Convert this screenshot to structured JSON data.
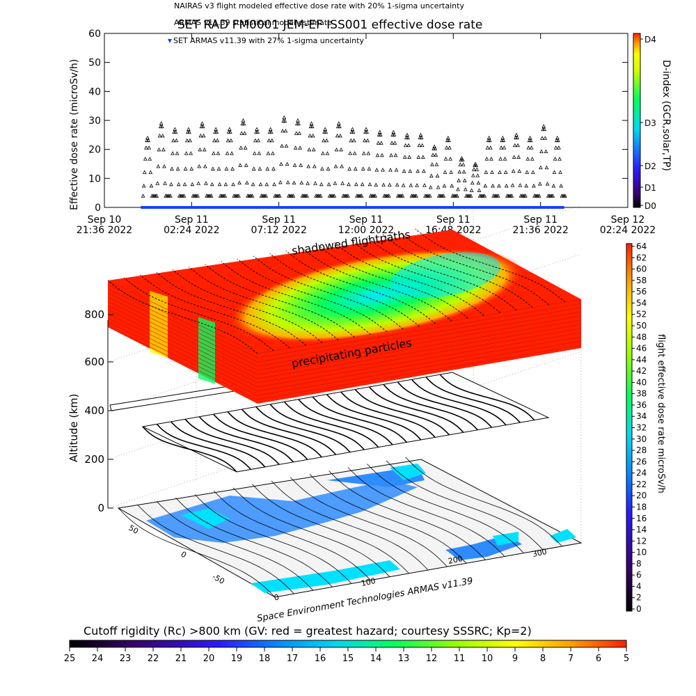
{
  "header": {
    "line_nairas": "NAIRAS v3 flight modeled effective dose rate with 20% 1-sigma uncertainty",
    "line_armas_model": "ARMAS v11.39 statistical model estimate",
    "title": "SET RAD FM0001 JEM-EF ISS001 effective dose rate",
    "legend_armas": "SET ARMAS v11.39 with 27% 1-sigma uncertainty"
  },
  "chart_data": [
    {
      "type": "scatter",
      "ylabel": "Effective dose rate (microSv/h)",
      "ylim": [
        0,
        60
      ],
      "yticks": [
        "0",
        "10",
        "20",
        "30",
        "40",
        "50",
        "60"
      ],
      "xticks": [
        {
          "d": "Sep 10",
          "t": "21:36 2022"
        },
        {
          "d": "Sep 11",
          "t": "02:24 2022"
        },
        {
          "d": "Sep 11",
          "t": "07:12 2022"
        },
        {
          "d": "Sep 11",
          "t": "12:00 2022"
        },
        {
          "d": "Sep 11",
          "t": "16:48 2022"
        },
        {
          "d": "Sep 11",
          "t": "21:36 2022"
        },
        {
          "d": "Sep 12",
          "t": "02:24 2022"
        }
      ],
      "x_range_hours": [
        0,
        28.8
      ],
      "data_span_hours": [
        2.0,
        25.3
      ],
      "peak_values": [
        24,
        29,
        27,
        27,
        29,
        27,
        27,
        30,
        27,
        27,
        31,
        30,
        29,
        27,
        29,
        27,
        27,
        26,
        26,
        25,
        25,
        21,
        24,
        17,
        15,
        24,
        24,
        25,
        24,
        28,
        24
      ],
      "markers": "triangle",
      "armas_series_color": "#1a3fff"
    },
    {
      "type": "heatmap",
      "ylabel": "Altitude (km)",
      "zticks": [
        "0",
        "200",
        "400",
        "600",
        "800"
      ],
      "lon_ticks": [
        "0",
        "100",
        "200",
        "300"
      ],
      "lat_ticks": [
        "-50",
        "0",
        "50"
      ],
      "annotation_top": "shadowed flightpaths",
      "annotation_mid": "precipitating particles",
      "credit": "Space Environment Technologies ARMAS v11.39"
    }
  ],
  "dindex_bar": {
    "label": "D-index (GCR,solar,TP)",
    "ticks": [
      "D4",
      "D3",
      "D2",
      "D1",
      "D0"
    ]
  },
  "dose_bar": {
    "label": "flight effective dose rate microSv/h",
    "ticks": [
      "64",
      "62",
      "60",
      "58",
      "56",
      "54",
      "52",
      "50",
      "48",
      "46",
      "44",
      "42",
      "40",
      "38",
      "36",
      "34",
      "32",
      "30",
      "28",
      "26",
      "24",
      "22",
      "20",
      "18",
      "16",
      "14",
      "12",
      "10",
      "8",
      "6",
      "4",
      "2",
      "0"
    ]
  },
  "rigidity_bar": {
    "caption": "Cutoff rigidity (Rc) >800 km (GV: red = greatest hazard; courtesy SSSRC; Kp=2)",
    "ticks": [
      "25",
      "24",
      "23",
      "22",
      "21",
      "20",
      "19",
      "18",
      "17",
      "16",
      "15",
      "14",
      "13",
      "12",
      "11",
      "10",
      "9",
      "8",
      "7",
      "6",
      "5"
    ]
  },
  "colors": {
    "ramp": [
      "#000000",
      "#3b0070",
      "#2a1cff",
      "#0090ff",
      "#00d8f0",
      "#00ff60",
      "#9cff00",
      "#ffff00",
      "#ffa000",
      "#ff2000"
    ],
    "ocean": "#2f8cff",
    "land_light": "#00e0ff"
  }
}
